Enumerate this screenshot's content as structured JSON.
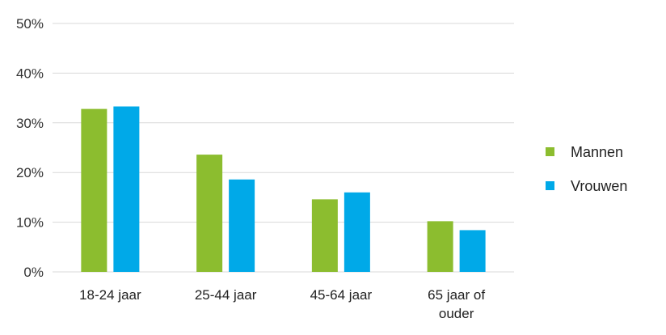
{
  "chart_data": {
    "type": "bar",
    "categories": [
      [
        "18-24 jaar"
      ],
      [
        "25-44 jaar"
      ],
      [
        "45-64 jaar"
      ],
      [
        "65 jaar of",
        "ouder"
      ]
    ],
    "series": [
      {
        "name": "Mannen",
        "color": "#8CBD2F",
        "values": [
          32.8,
          23.6,
          14.6,
          10.2
        ]
      },
      {
        "name": "Vrouwen",
        "color": "#00A9E8",
        "values": [
          33.3,
          18.6,
          16.0,
          8.4
        ]
      }
    ],
    "yticks": [
      "0%",
      "10%",
      "20%",
      "30%",
      "40%",
      "50%"
    ],
    "ylim": [
      0,
      50
    ],
    "grid": true,
    "legend": "right",
    "gridColor": "#D9D9D9"
  }
}
